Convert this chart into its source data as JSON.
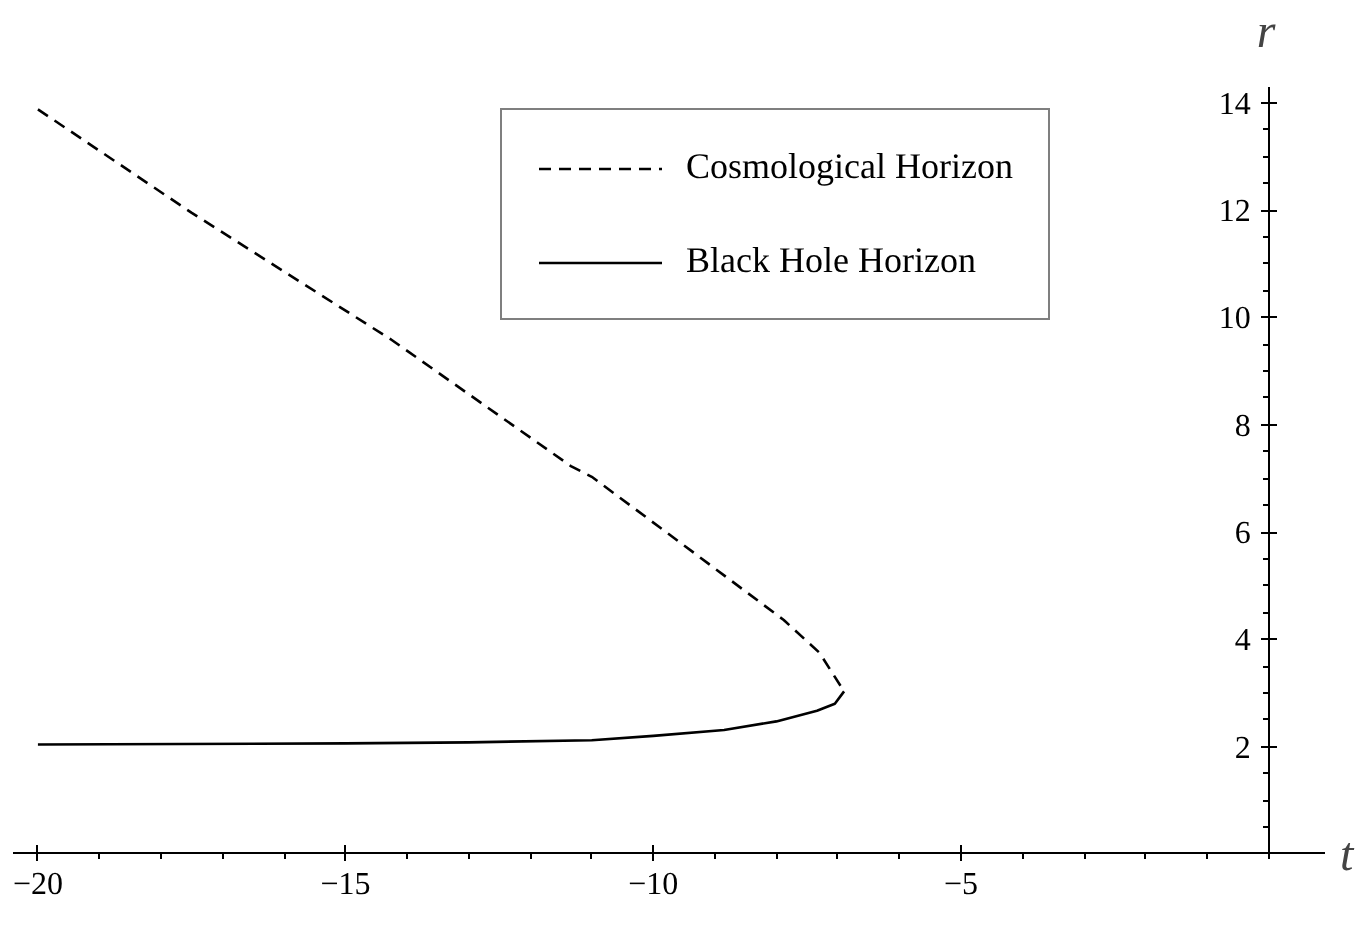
{
  "chart_data": {
    "type": "line",
    "xlabel": "t",
    "ylabel": "r",
    "xlim": [
      -20.4,
      0.9
    ],
    "ylim": [
      0,
      14.3
    ],
    "xticks": [
      {
        "value": -20,
        "label": "−20"
      },
      {
        "value": -15,
        "label": "−15"
      },
      {
        "value": -10,
        "label": "−10"
      },
      {
        "value": -5,
        "label": "−5"
      }
    ],
    "yticks": [
      2,
      4,
      6,
      8,
      10,
      12,
      14
    ],
    "legend": "top right",
    "grid": false,
    "series": [
      {
        "name": "Cosmological Horizon",
        "color": "#000000",
        "line_style": "dashed",
        "x": [
          -20,
          -17.5,
          -14.25,
          -11.34,
          -11.0,
          -9.5,
          -7.88,
          -7.3,
          -6.9
        ],
        "values": [
          13.88,
          11.95,
          9.58,
          7.23,
          7.03,
          5.75,
          4.36,
          3.75,
          3.03
        ]
      },
      {
        "name": "Black Hole Horizon",
        "color": "#000000",
        "line_style": "solid",
        "x": [
          -6.9,
          -7.05,
          -7.34,
          -8.0,
          -8.85,
          -10,
          -11,
          -13,
          -15,
          -20
        ],
        "values": [
          3.03,
          2.8,
          2.67,
          2.47,
          2.31,
          2.2,
          2.12,
          2.08,
          2.06,
          2.04
        ]
      }
    ]
  }
}
